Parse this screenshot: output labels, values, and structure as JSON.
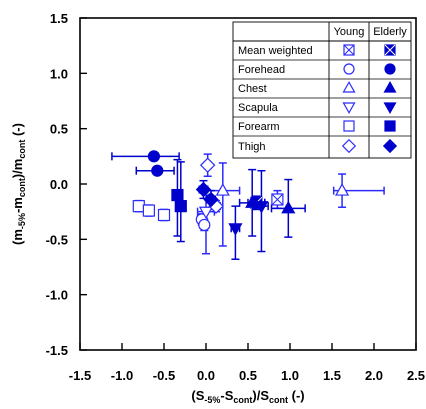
{
  "chart_data": {
    "type": "scatter",
    "xlabel": {
      "main": "(S",
      "s1": "-5%",
      "mid": "-S",
      "s2": "cont",
      "end": ")/S",
      "s3": "cont",
      "unit": " (-)"
    },
    "ylabel": {
      "main": "(m",
      "s1": "-5%",
      "mid": "-m",
      "s2": "cont",
      "end": ")/m",
      "s3": "cont",
      "unit": " (-)"
    },
    "xlim": [
      -1.5,
      2.5
    ],
    "ylim": [
      -1.5,
      1.5
    ],
    "x_ticks": [
      -1.5,
      -1.0,
      -0.5,
      0.0,
      0.5,
      1.0,
      1.5,
      2.0,
      2.5
    ],
    "x_tick_labels": [
      "-1.5",
      "-1.0",
      "-0.5",
      "0.0",
      "0.5",
      "1.0",
      "1.5",
      "2.0",
      "2.5"
    ],
    "y_ticks": [
      -1.5,
      -1.0,
      -0.5,
      0.0,
      0.5,
      1.0,
      1.5
    ],
    "y_tick_labels": [
      "-1.5",
      "-1.0",
      "-0.5",
      "0.0",
      "0.5",
      "1.0",
      "1.5"
    ],
    "grid": false,
    "legend_placement": "top-right",
    "legend": {
      "headers": [
        "Young",
        "Elderly"
      ],
      "rows": [
        {
          "label": "Mean weighted",
          "marker": "boxx"
        },
        {
          "label": "Forehead",
          "marker": "circle"
        },
        {
          "label": "Chest",
          "marker": "triangle-up"
        },
        {
          "label": "Scapula",
          "marker": "triangle-down"
        },
        {
          "label": "Forearm",
          "marker": "square"
        },
        {
          "label": "Thigh",
          "marker": "diamond"
        }
      ]
    },
    "colors": {
      "young": "#2b2bff",
      "young_fill": "#ffffff",
      "elderly": "#0000cc"
    },
    "series": [
      {
        "name": "Mean weighted",
        "group": "Young",
        "marker": "boxx",
        "points": [
          {
            "x": 0.85,
            "y": -0.14,
            "xerr": [
              0.05,
              0.05
            ],
            "yerr": [
              0.08,
              0.08
            ]
          }
        ]
      },
      {
        "name": "Mean weighted",
        "group": "Elderly",
        "marker": "boxx",
        "points": [
          {
            "x": 0.6,
            "y": -0.17,
            "xerr": [
              0.1,
              0.1
            ],
            "yerr": [
              0.06,
              0.06
            ]
          }
        ]
      },
      {
        "name": "Forehead",
        "group": "Young",
        "marker": "circle",
        "points": [
          {
            "x": -0.05,
            "y": -0.32,
            "xerr": [
              0.05,
              0.05
            ],
            "yerr": [
              0.05,
              0.05
            ]
          },
          {
            "x": -0.02,
            "y": -0.37,
            "xerr": [
              0.05,
              0.05
            ],
            "yerr": [
              0.05,
              0.05
            ]
          }
        ]
      },
      {
        "name": "Forehead",
        "group": "Elderly",
        "marker": "circle",
        "points": [
          {
            "x": -0.62,
            "y": 0.25,
            "xerr": [
              0.5,
              0.3
            ],
            "yerr": [
              0,
              0
            ]
          },
          {
            "x": -0.58,
            "y": 0.12,
            "xerr": [
              0.25,
              0.2
            ],
            "yerr": [
              0,
              0
            ]
          }
        ]
      },
      {
        "name": "Chest",
        "group": "Young",
        "marker": "triangle-up",
        "points": [
          {
            "x": 1.62,
            "y": -0.06,
            "xerr": [
              0.1,
              0.5
            ],
            "yerr": [
              0.15,
              0.15
            ]
          },
          {
            "x": 0.2,
            "y": -0.06,
            "xerr": [
              0.2,
              0.2
            ],
            "yerr": [
              0.5,
              0.25
            ]
          }
        ]
      },
      {
        "name": "Chest",
        "group": "Elderly",
        "marker": "triangle-up",
        "points": [
          {
            "x": 0.98,
            "y": -0.22,
            "xerr": [
              0.2,
              0.2
            ],
            "yerr": [
              0.26,
              0.26
            ]
          },
          {
            "x": 0.55,
            "y": -0.17,
            "xerr": [
              0.15,
              0.15
            ],
            "yerr": [
              0.3,
              0.3
            ]
          }
        ]
      },
      {
        "name": "Scapula",
        "group": "Young",
        "marker": "triangle-down",
        "points": [
          {
            "x": 0.0,
            "y": -0.25,
            "xerr": [
              0.1,
              0.1
            ],
            "yerr": [
              0.38,
              0.15
            ]
          }
        ]
      },
      {
        "name": "Scapula",
        "group": "Elderly",
        "marker": "triangle-down",
        "points": [
          {
            "x": 0.35,
            "y": -0.4,
            "xerr": [
              0.05,
              0.05
            ],
            "yerr": [
              0.28,
              0.2
            ]
          },
          {
            "x": 0.66,
            "y": -0.2,
            "xerr": [
              0.08,
              0.08
            ],
            "yerr": [
              0.41,
              0.32
            ]
          }
        ]
      },
      {
        "name": "Forearm",
        "group": "Young",
        "marker": "square",
        "points": [
          {
            "x": -0.8,
            "y": -0.2,
            "xerr": [
              0.05,
              0.05
            ],
            "yerr": [
              0.05,
              0.05
            ]
          },
          {
            "x": -0.68,
            "y": -0.24,
            "xerr": [
              0.05,
              0.05
            ],
            "yerr": [
              0.05,
              0.05
            ]
          },
          {
            "x": -0.5,
            "y": -0.28,
            "xerr": [
              0.05,
              0.05
            ],
            "yerr": [
              0.05,
              0.05
            ]
          }
        ]
      },
      {
        "name": "Forearm",
        "group": "Elderly",
        "marker": "square",
        "points": [
          {
            "x": -0.34,
            "y": -0.1,
            "xerr": [
              0.05,
              0.05
            ],
            "yerr": [
              0.37,
              0.32
            ]
          },
          {
            "x": -0.3,
            "y": -0.2,
            "xerr": [
              0.05,
              0.05
            ],
            "yerr": [
              0.32,
              0.4
            ]
          }
        ]
      },
      {
        "name": "Thigh",
        "group": "Young",
        "marker": "diamond",
        "points": [
          {
            "x": 0.02,
            "y": 0.17,
            "xerr": [
              0.04,
              0.04
            ],
            "yerr": [
              0.1,
              0.1
            ]
          },
          {
            "x": 0.12,
            "y": -0.2,
            "xerr": [
              0.05,
              0.05
            ],
            "yerr": [
              0.05,
              0.05
            ]
          }
        ]
      },
      {
        "name": "Thigh",
        "group": "Elderly",
        "marker": "diamond",
        "points": [
          {
            "x": -0.03,
            "y": -0.05,
            "xerr": [
              0.05,
              0.05
            ],
            "yerr": [
              0.08,
              0.08
            ]
          },
          {
            "x": 0.06,
            "y": -0.14,
            "xerr": [
              0.05,
              0.05
            ],
            "yerr": [
              0.08,
              0.08
            ]
          }
        ]
      }
    ]
  }
}
